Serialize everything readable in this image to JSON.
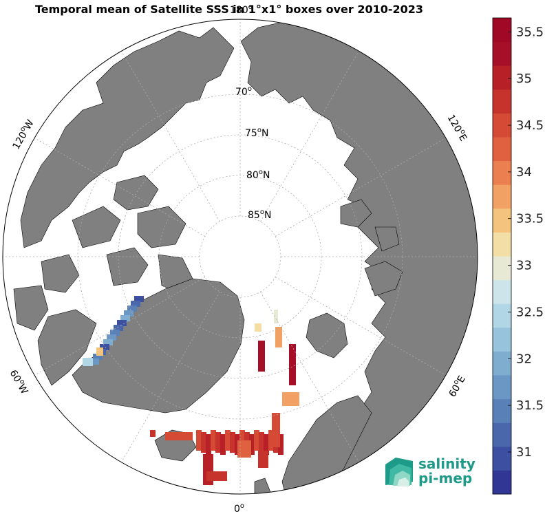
{
  "title": "Temporal mean of Satellite SSS in 1°x1° boxes over 2010-2023",
  "latitude_labels": [
    {
      "text": "70",
      "sup": "o"
    },
    {
      "text": "75",
      "sup": "o",
      "suffix": "N"
    },
    {
      "text": "80",
      "sup": "o",
      "suffix": "N"
    },
    {
      "text": "85",
      "sup": "o",
      "suffix": "N"
    }
  ],
  "longitude_labels": {
    "top": {
      "text": "180",
      "sup": "o"
    },
    "bottom": {
      "text": "0",
      "sup": "o"
    },
    "left_upper": {
      "text": "120",
      "sup": "o",
      "suffix": "W"
    },
    "left_lower": {
      "text": "60",
      "sup": "o",
      "suffix": "W"
    },
    "right_upper": {
      "text": "120",
      "sup": "o",
      "suffix": "E"
    },
    "right_lower": {
      "text": "60",
      "sup": "o",
      "suffix": "E"
    }
  },
  "colorbar": {
    "min": 30.55,
    "max": 35.65,
    "ticks": [
      "31",
      "31.5",
      "32",
      "32.5",
      "33",
      "33.5",
      "34",
      "34.5",
      "35",
      "35.5"
    ],
    "colors": [
      "#313695",
      "#3c4fa0",
      "#4a67ab",
      "#5a80b8",
      "#6b97c4",
      "#7fadd0",
      "#97c3dc",
      "#b1d6e5",
      "#cde5ea",
      "#e7e9d4",
      "#f3dfa5",
      "#f4c47f",
      "#f1a163",
      "#eb7f4f",
      "#e0613f",
      "#d44a35",
      "#c5332c",
      "#b72026",
      "#a50f28",
      "#a00926"
    ]
  },
  "colors": {
    "land": "#808080",
    "ocean": "#ffffff",
    "coast": "#000000",
    "grid": "#aaaaaa"
  },
  "logo": {
    "line1": "salinity",
    "line2": "pi-mep"
  }
}
